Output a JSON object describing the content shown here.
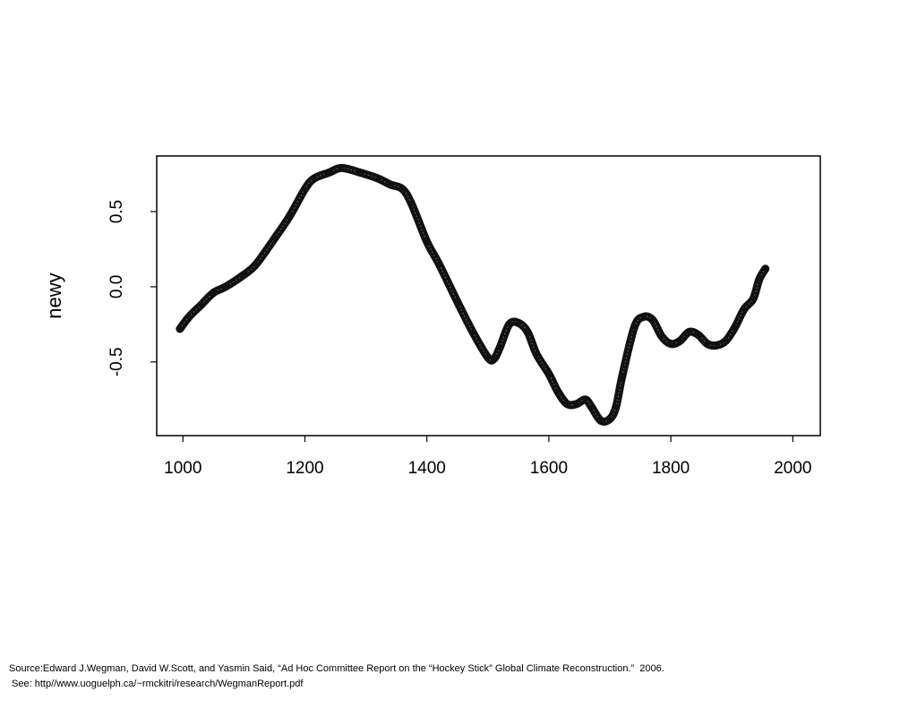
{
  "chart_data": {
    "type": "line",
    "title": "",
    "xlabel": "",
    "ylabel": "newy",
    "xlim": [
      957,
      2045
    ],
    "ylim": [
      -0.99,
      0.87
    ],
    "x_ticks": [
      1000,
      1200,
      1400,
      1600,
      1800,
      2000
    ],
    "x_tick_labels": [
      "1000",
      "1200",
      "1400",
      "1600",
      "1800",
      "2000"
    ],
    "y_ticks": [
      -0.5,
      0.0,
      0.5
    ],
    "y_tick_labels": [
      "-0.5",
      "0.0",
      "0.5"
    ],
    "grid": false,
    "series": [
      {
        "x": [
          995,
          1010,
          1030,
          1050,
          1070,
          1100,
          1120,
          1150,
          1175,
          1200,
          1215,
          1240,
          1260,
          1290,
          1320,
          1340,
          1360,
          1375,
          1400,
          1420,
          1450,
          1475,
          1500,
          1510,
          1520,
          1535,
          1550,
          1565,
          1580,
          1600,
          1615,
          1630,
          1645,
          1660,
          1670,
          1685,
          1700,
          1710,
          1720,
          1740,
          1755,
          1770,
          1785,
          1800,
          1815,
          1830,
          1845,
          1860,
          1875,
          1890,
          1905,
          1920,
          1935,
          1945,
          1955
        ],
        "y": [
          -0.28,
          -0.2,
          -0.12,
          -0.04,
          0.0,
          0.08,
          0.15,
          0.32,
          0.47,
          0.65,
          0.72,
          0.76,
          0.79,
          0.76,
          0.72,
          0.68,
          0.65,
          0.55,
          0.3,
          0.15,
          -0.1,
          -0.3,
          -0.47,
          -0.48,
          -0.4,
          -0.25,
          -0.24,
          -0.3,
          -0.45,
          -0.58,
          -0.7,
          -0.78,
          -0.78,
          -0.75,
          -0.8,
          -0.89,
          -0.88,
          -0.8,
          -0.6,
          -0.27,
          -0.2,
          -0.22,
          -0.33,
          -0.38,
          -0.36,
          -0.3,
          -0.32,
          -0.38,
          -0.39,
          -0.36,
          -0.27,
          -0.15,
          -0.08,
          0.05,
          0.12
        ]
      }
    ]
  },
  "source": {
    "line1": "Source:Edward J.Wegman, David W.Scott, and Yasmin Said, “Ad Hoc Committee Report on the “Hockey Stick” Global Climate Reconstruction.”  2006.",
    "line2": " See: http//www.uoguelph.ca/~rmckitri/research/WegmanReport.pdf"
  }
}
